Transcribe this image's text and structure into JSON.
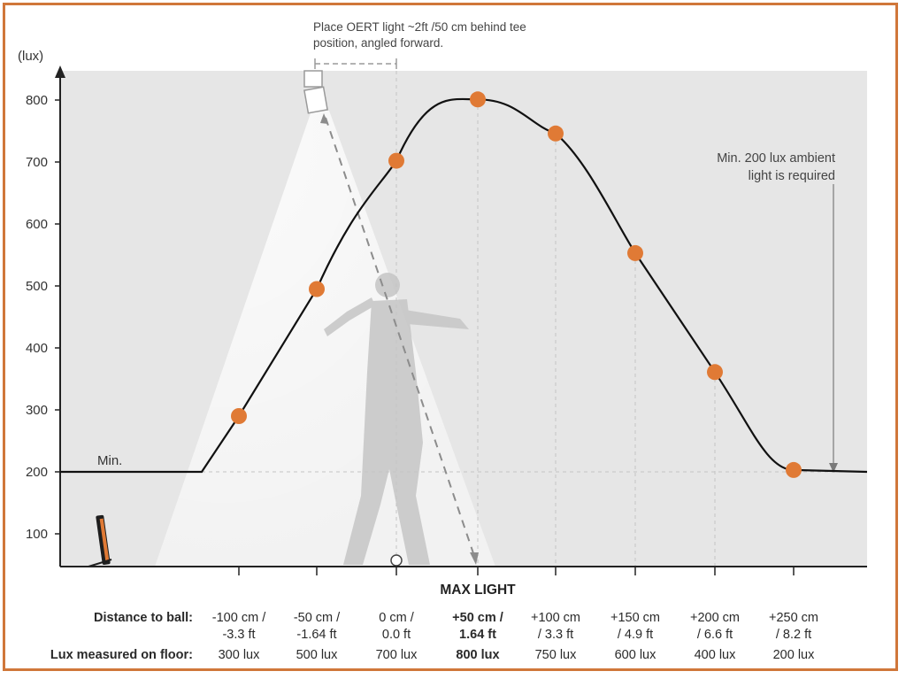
{
  "chart_data": {
    "type": "line",
    "ylabel": "(lux)",
    "xlabel": "MAX LIGHT",
    "yticks": [
      100,
      200,
      300,
      400,
      500,
      600,
      700,
      800
    ],
    "ylim": [
      50,
      850
    ],
    "series": [
      {
        "values": [
          290,
          495,
          702,
          801,
          746,
          553,
          361,
          203
        ]
      }
    ],
    "min_label": "Min.",
    "min_value": 200,
    "annotation_top": [
      "Place OERT light ~2ft /50 cm behind tee",
      "position, angled forward."
    ],
    "annotation_right": [
      "Min. 200 lux ambient",
      "light is required"
    ],
    "colors": {
      "marker": "#e07a35",
      "line": "#111111",
      "border": "#d0773a",
      "panel": "#e6e6e6"
    }
  },
  "table": {
    "distance_label": "Distance to ball:",
    "lux_label": "Lux measured on floor:",
    "highlight_index": 3,
    "columns": [
      {
        "dist1": "-100 cm /",
        "dist2": "-3.3 ft",
        "lux": "300 lux"
      },
      {
        "dist1": "-50 cm /",
        "dist2": "-1.64 ft",
        "lux": "500 lux"
      },
      {
        "dist1": "0 cm /",
        "dist2": "0.0 ft",
        "lux": "700 lux"
      },
      {
        "dist1": "+50 cm /",
        "dist2": "1.64 ft",
        "lux": "800 lux"
      },
      {
        "dist1": "+100 cm",
        "dist2": "/ 3.3 ft",
        "lux": "750 lux"
      },
      {
        "dist1": "+150 cm",
        "dist2": "/ 4.9 ft",
        "lux": "600 lux"
      },
      {
        "dist1": "+200 cm",
        "dist2": "/ 6.6 ft",
        "lux": "400 lux"
      },
      {
        "dist1": "+250 cm",
        "dist2": "/ 8.2 ft",
        "lux": "200 lux"
      }
    ]
  }
}
